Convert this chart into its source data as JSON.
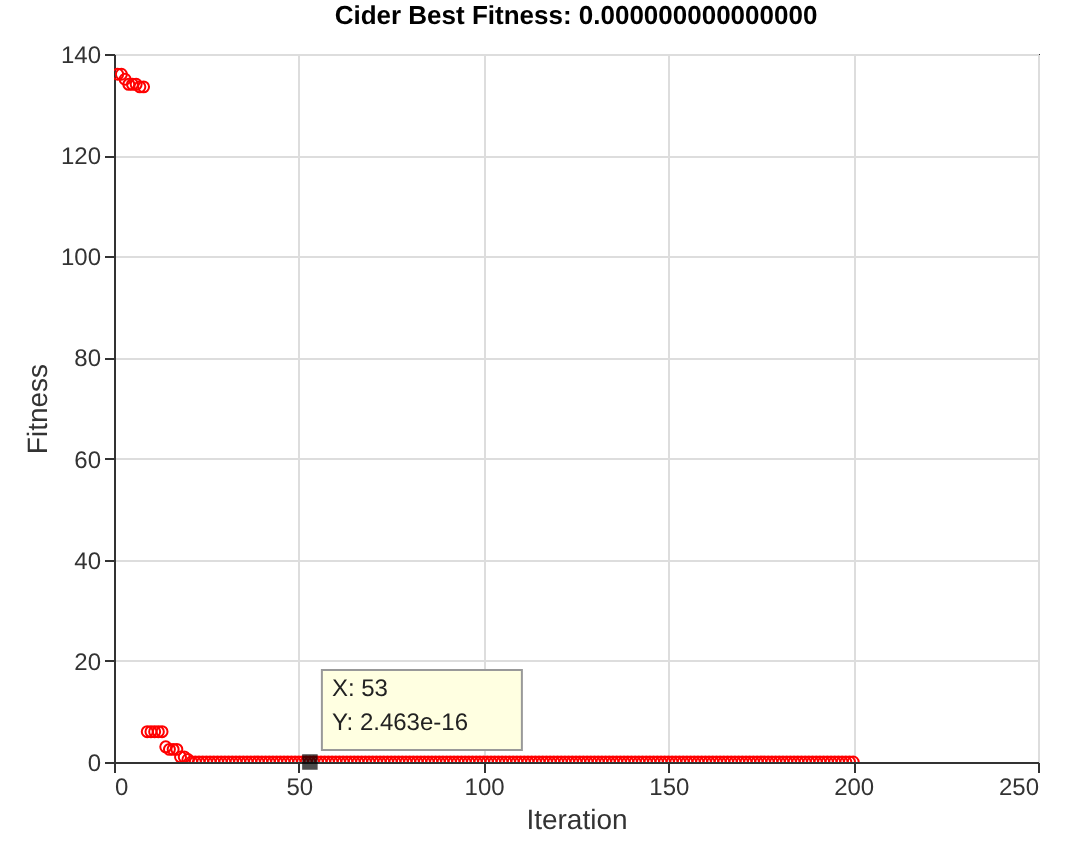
{
  "chart_data": {
    "type": "scatter",
    "title": "Cider Best Fitness: 0.000000000000000",
    "xlabel": "Iteration",
    "ylabel": "Fitness",
    "x": [
      1,
      2,
      3,
      4,
      5,
      6,
      7,
      8,
      9,
      10,
      11,
      12,
      13,
      14,
      15,
      16,
      17,
      18,
      19,
      20,
      21,
      22,
      23,
      24,
      25,
      26,
      27,
      28,
      29,
      30,
      31,
      32,
      33,
      34,
      35,
      36,
      37,
      38,
      39,
      40,
      41,
      42,
      43,
      44,
      45,
      46,
      47,
      48,
      49,
      50,
      51,
      52,
      53,
      54,
      55,
      56,
      57,
      58,
      59,
      60,
      61,
      62,
      63,
      64,
      65,
      66,
      67,
      68,
      69,
      70,
      71,
      72,
      73,
      74,
      75,
      76,
      77,
      78,
      79,
      80,
      81,
      82,
      83,
      84,
      85,
      86,
      87,
      88,
      89,
      90,
      91,
      92,
      93,
      94,
      95,
      96,
      97,
      98,
      99,
      100,
      101,
      102,
      103,
      104,
      105,
      106,
      107,
      108,
      109,
      110,
      111,
      112,
      113,
      114,
      115,
      116,
      117,
      118,
      119,
      120,
      121,
      122,
      123,
      124,
      125,
      126,
      127,
      128,
      129,
      130,
      131,
      132,
      133,
      134,
      135,
      136,
      137,
      138,
      139,
      140,
      141,
      142,
      143,
      144,
      145,
      146,
      147,
      148,
      149,
      150,
      151,
      152,
      153,
      154,
      155,
      156,
      157,
      158,
      159,
      160,
      161,
      162,
      163,
      164,
      165,
      166,
      167,
      168,
      169,
      170,
      171,
      172,
      173,
      174,
      175,
      176,
      177,
      178,
      179,
      180,
      181,
      182,
      183,
      184,
      185,
      186,
      187,
      188,
      189,
      190,
      191,
      192,
      193,
      194,
      195,
      196,
      197,
      198,
      199,
      200
    ],
    "values": [
      136,
      136,
      135,
      134,
      134,
      134,
      133.5,
      133.5,
      6,
      6,
      6,
      6,
      6,
      3,
      2.5,
      2.5,
      2.5,
      1,
      1,
      0.5,
      0,
      0,
      0,
      0,
      0,
      0,
      0,
      0,
      0,
      0,
      0,
      0,
      0,
      0,
      0,
      0,
      0,
      0,
      0,
      0,
      0,
      0,
      0,
      0,
      0,
      0,
      0,
      0,
      0,
      0,
      0,
      0,
      0,
      0,
      0,
      0,
      0,
      0,
      0,
      0,
      0,
      0,
      0,
      0,
      0,
      0,
      0,
      0,
      0,
      0,
      0,
      0,
      0,
      0,
      0,
      0,
      0,
      0,
      0,
      0,
      0,
      0,
      0,
      0,
      0,
      0,
      0,
      0,
      0,
      0,
      0,
      0,
      0,
      0,
      0,
      0,
      0,
      0,
      0,
      0,
      0,
      0,
      0,
      0,
      0,
      0,
      0,
      0,
      0,
      0,
      0,
      0,
      0,
      0,
      0,
      0,
      0,
      0,
      0,
      0,
      0,
      0,
      0,
      0,
      0,
      0,
      0,
      0,
      0,
      0,
      0,
      0,
      0,
      0,
      0,
      0,
      0,
      0,
      0,
      0,
      0,
      0,
      0,
      0,
      0,
      0,
      0,
      0,
      0,
      0,
      0,
      0,
      0,
      0,
      0,
      0,
      0,
      0,
      0,
      0,
      0,
      0,
      0,
      0,
      0,
      0,
      0,
      0,
      0,
      0,
      0,
      0,
      0,
      0,
      0,
      0,
      0,
      0,
      0,
      0,
      0,
      0,
      0,
      0,
      0,
      0,
      0,
      0,
      0,
      0,
      0,
      0,
      0,
      0,
      0,
      0,
      0,
      0,
      0,
      0
    ],
    "color": "#ff0000",
    "marker": "circle",
    "grid": true,
    "xlim": [
      0,
      250
    ],
    "xticks": [
      0,
      50,
      100,
      150,
      200,
      250
    ],
    "ylim": [
      0,
      140
    ],
    "yticks": [
      0,
      20,
      40,
      60,
      80,
      100,
      120,
      140
    ],
    "annotations": [
      {
        "text": "X: 53\nY: 2.463e-16",
        "x": 53,
        "y": 2.463e-16
      }
    ]
  }
}
